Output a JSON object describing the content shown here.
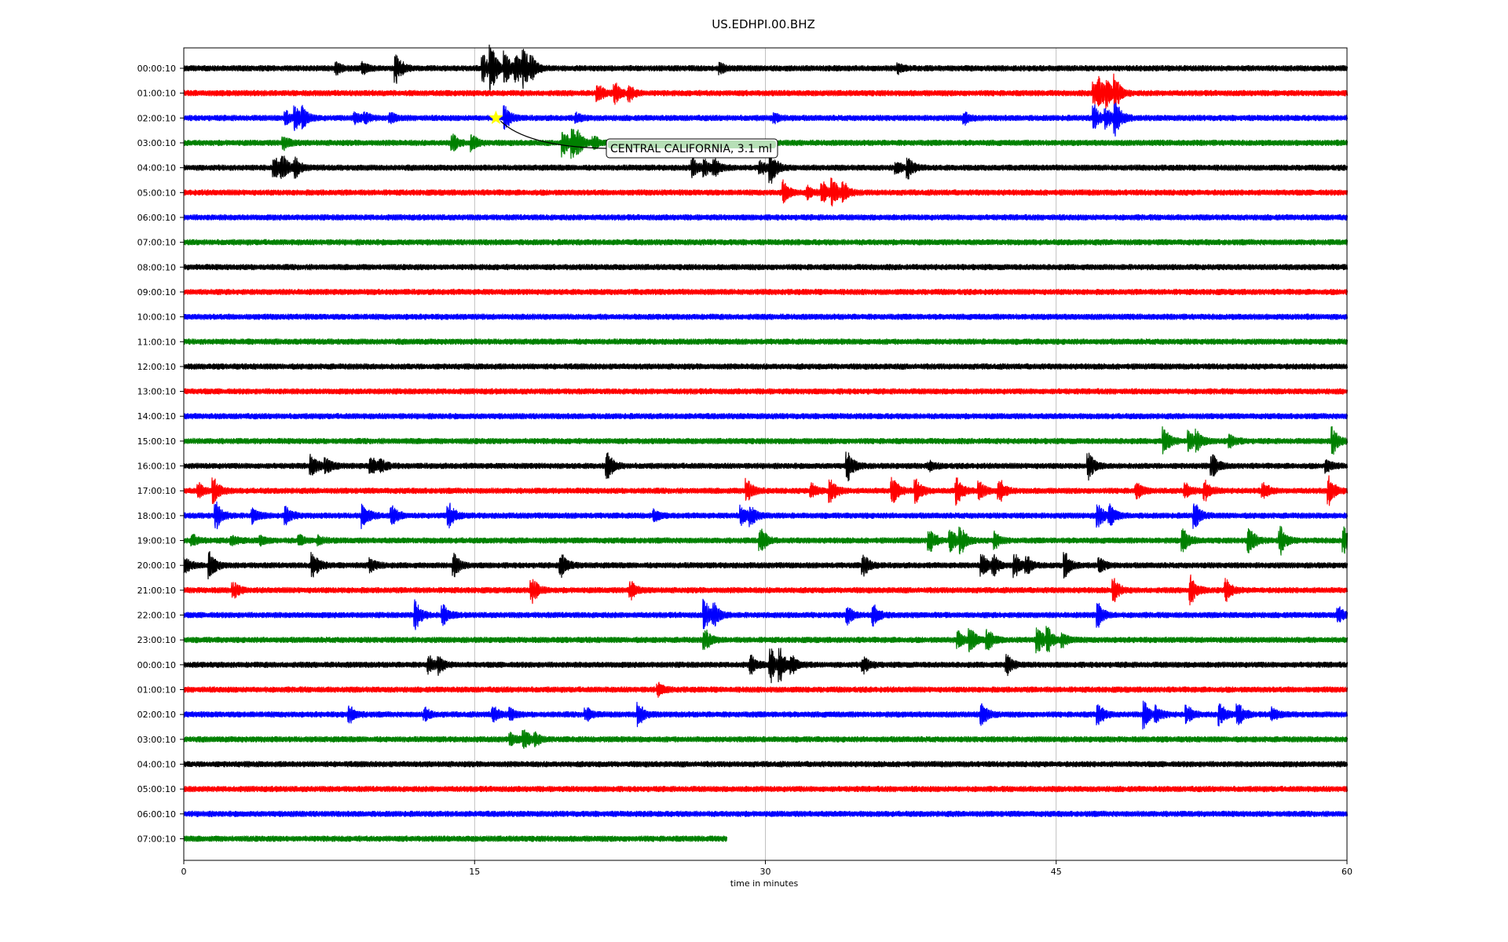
{
  "chart_data": {
    "type": "line",
    "title": "US.EDHPI.00.BHZ",
    "xlabel": "time in minutes",
    "ylabel": "",
    "xlim": [
      0,
      60
    ],
    "x_ticks": [
      "0",
      "15",
      "30",
      "45",
      "60"
    ],
    "grid": "vertical",
    "series_colors": [
      "#000000",
      "#ff0000",
      "#0000ff",
      "#008000"
    ],
    "rows": [
      {
        "label": "00:00:10",
        "end": 60,
        "events": [
          [
            7.9,
            0.35
          ],
          [
            9.3,
            0.4
          ],
          [
            11.0,
            1.0
          ],
          [
            15.5,
            0.9
          ],
          [
            15.9,
            1.5
          ],
          [
            16.6,
            1.2
          ],
          [
            17.2,
            1.0
          ],
          [
            17.6,
            1.2
          ],
          [
            18.0,
            0.6
          ],
          [
            27.7,
            0.3
          ],
          [
            36.9,
            0.3
          ]
        ]
      },
      {
        "label": "01:00:10",
        "end": 60,
        "events": [
          [
            21.4,
            0.6
          ],
          [
            22.3,
            0.7
          ],
          [
            23.0,
            0.5
          ],
          [
            47.0,
            1.2
          ],
          [
            47.3,
            0.9
          ],
          [
            47.7,
            0.8
          ],
          [
            48.1,
            1.0
          ]
        ]
      },
      {
        "label": "02:00:10",
        "end": 60,
        "events": [
          [
            5.3,
            0.4
          ],
          [
            5.8,
            0.8
          ],
          [
            6.2,
            0.6
          ],
          [
            8.9,
            0.4
          ],
          [
            9.4,
            0.3
          ],
          [
            10.7,
            0.3
          ],
          [
            16.6,
            0.8
          ],
          [
            20.3,
            0.3
          ],
          [
            30.5,
            0.3
          ],
          [
            40.3,
            0.4
          ],
          [
            47.0,
            0.8
          ],
          [
            47.6,
            0.7
          ],
          [
            48.1,
            1.2
          ]
        ]
      },
      {
        "label": "03:00:10",
        "end": 60,
        "events": [
          [
            5.2,
            0.5
          ],
          [
            13.9,
            0.6
          ],
          [
            14.9,
            0.5
          ],
          [
            19.6,
            1.0
          ],
          [
            20.1,
            0.9
          ],
          [
            20.4,
            0.6
          ],
          [
            21.2,
            0.4
          ]
        ]
      },
      {
        "label": "04:00:10",
        "end": 60,
        "events": [
          [
            4.7,
            0.8
          ],
          [
            5.1,
            0.9
          ],
          [
            5.8,
            0.6
          ],
          [
            26.3,
            0.6
          ],
          [
            26.9,
            0.5
          ],
          [
            27.4,
            0.6
          ],
          [
            29.8,
            0.5
          ],
          [
            30.3,
            1.2
          ],
          [
            36.8,
            0.4
          ],
          [
            37.4,
            0.7
          ]
        ]
      },
      {
        "label": "05:00:10",
        "end": 60,
        "events": [
          [
            31.0,
            0.8
          ],
          [
            32.2,
            0.4
          ],
          [
            33.0,
            0.7
          ],
          [
            33.5,
            0.9
          ],
          [
            34.1,
            0.6
          ]
        ]
      },
      {
        "label": "06:00:10",
        "end": 60,
        "events": []
      },
      {
        "label": "07:00:10",
        "end": 60,
        "events": []
      },
      {
        "label": "08:00:10",
        "end": 60,
        "events": []
      },
      {
        "label": "09:00:10",
        "end": 60,
        "events": []
      },
      {
        "label": "10:00:10",
        "end": 60,
        "events": []
      },
      {
        "label": "11:00:10",
        "end": 60,
        "events": []
      },
      {
        "label": "12:00:10",
        "end": 60,
        "events": []
      },
      {
        "label": "13:00:10",
        "end": 60,
        "events": []
      },
      {
        "label": "14:00:10",
        "end": 60,
        "events": []
      },
      {
        "label": "15:00:10",
        "end": 60,
        "events": [
          [
            50.6,
            1.0
          ],
          [
            51.9,
            0.7
          ],
          [
            52.3,
            0.6
          ],
          [
            54.0,
            0.4
          ],
          [
            59.3,
            0.9
          ]
        ]
      },
      {
        "label": "16:00:10",
        "end": 60,
        "events": [
          [
            6.6,
            0.9
          ],
          [
            7.4,
            0.6
          ],
          [
            9.7,
            0.7
          ],
          [
            10.2,
            0.4
          ],
          [
            21.9,
            0.9
          ],
          [
            34.3,
            1.0
          ],
          [
            38.5,
            0.3
          ],
          [
            46.7,
            0.9
          ],
          [
            53.1,
            0.7
          ],
          [
            59.0,
            0.4
          ]
        ]
      },
      {
        "label": "17:00:10",
        "end": 60,
        "events": [
          [
            0.8,
            0.5
          ],
          [
            1.6,
            0.9
          ],
          [
            29.1,
            0.8
          ],
          [
            32.4,
            0.6
          ],
          [
            33.4,
            0.9
          ],
          [
            36.6,
            0.9
          ],
          [
            37.8,
            0.9
          ],
          [
            39.9,
            1.0
          ],
          [
            41.1,
            0.6
          ],
          [
            42.1,
            0.8
          ],
          [
            49.2,
            0.5
          ],
          [
            51.7,
            0.5
          ],
          [
            52.7,
            0.8
          ],
          [
            55.7,
            0.6
          ],
          [
            59.1,
            1.0
          ]
        ]
      },
      {
        "label": "18:00:10",
        "end": 60,
        "events": [
          [
            1.7,
            0.9
          ],
          [
            3.6,
            0.6
          ],
          [
            5.3,
            0.6
          ],
          [
            9.3,
            0.9
          ],
          [
            10.8,
            0.6
          ],
          [
            13.7,
            1.0
          ],
          [
            24.3,
            0.4
          ],
          [
            28.8,
            0.7
          ],
          [
            29.3,
            0.6
          ],
          [
            47.2,
            0.8
          ],
          [
            47.8,
            0.7
          ],
          [
            52.2,
            0.8
          ]
        ]
      },
      {
        "label": "19:00:10",
        "end": 60,
        "events": [
          [
            0.5,
            0.3
          ],
          [
            2.5,
            0.3
          ],
          [
            4.0,
            0.3
          ],
          [
            6.0,
            0.3
          ],
          [
            7.0,
            0.3
          ],
          [
            29.8,
            0.9
          ],
          [
            38.5,
            0.9
          ],
          [
            39.6,
            0.8
          ],
          [
            40.1,
            0.9
          ],
          [
            41.9,
            0.6
          ],
          [
            51.6,
            0.8
          ],
          [
            55.0,
            0.9
          ],
          [
            56.6,
            0.9
          ],
          [
            59.9,
            1.0
          ]
        ]
      },
      {
        "label": "20:00:10",
        "end": 60,
        "events": [
          [
            0.1,
            0.5
          ],
          [
            1.4,
            0.9
          ],
          [
            6.7,
            0.9
          ],
          [
            9.7,
            0.4
          ],
          [
            14.0,
            0.8
          ],
          [
            19.5,
            0.9
          ],
          [
            35.1,
            0.7
          ],
          [
            41.2,
            0.8
          ],
          [
            41.8,
            0.7
          ],
          [
            42.9,
            0.8
          ],
          [
            43.5,
            0.6
          ],
          [
            45.5,
            0.9
          ],
          [
            47.3,
            0.5
          ]
        ]
      },
      {
        "label": "21:00:10",
        "end": 60,
        "events": [
          [
            2.6,
            0.5
          ],
          [
            18.0,
            0.9
          ],
          [
            23.1,
            0.6
          ],
          [
            48.0,
            0.8
          ],
          [
            52.0,
            1.0
          ],
          [
            53.8,
            0.8
          ]
        ]
      },
      {
        "label": "22:00:10",
        "end": 60,
        "events": [
          [
            12.0,
            1.0
          ],
          [
            13.4,
            0.7
          ],
          [
            26.9,
            1.0
          ],
          [
            27.4,
            0.7
          ],
          [
            34.3,
            0.6
          ],
          [
            35.6,
            0.8
          ],
          [
            47.2,
            0.8
          ],
          [
            59.6,
            0.6
          ]
        ]
      },
      {
        "label": "23:00:10",
        "end": 60,
        "events": [
          [
            26.9,
            0.8
          ],
          [
            40.0,
            0.6
          ],
          [
            40.6,
            0.9
          ],
          [
            41.5,
            0.7
          ],
          [
            44.1,
            0.9
          ],
          [
            44.6,
            0.8
          ],
          [
            45.4,
            0.4
          ]
        ]
      },
      {
        "label": "00:00:10",
        "end": 60,
        "events": [
          [
            12.7,
            0.6
          ],
          [
            13.2,
            0.5
          ],
          [
            29.3,
            0.6
          ],
          [
            30.3,
            1.2
          ],
          [
            30.8,
            1.0
          ],
          [
            31.4,
            0.6
          ],
          [
            35.1,
            0.6
          ],
          [
            42.5,
            0.7
          ]
        ]
      },
      {
        "label": "01:00:10",
        "end": 60,
        "events": [
          [
            24.5,
            0.4
          ]
        ]
      },
      {
        "label": "02:00:10",
        "end": 60,
        "events": [
          [
            8.6,
            0.5
          ],
          [
            12.5,
            0.4
          ],
          [
            16.0,
            0.6
          ],
          [
            16.9,
            0.4
          ],
          [
            20.8,
            0.4
          ],
          [
            23.5,
            0.8
          ],
          [
            41.2,
            0.8
          ],
          [
            47.2,
            0.8
          ],
          [
            49.6,
            0.9
          ],
          [
            50.2,
            0.5
          ],
          [
            51.8,
            0.6
          ],
          [
            53.5,
            0.7
          ],
          [
            54.4,
            0.9
          ],
          [
            56.2,
            0.4
          ]
        ]
      },
      {
        "label": "03:00:10",
        "end": 60,
        "events": [
          [
            16.9,
            0.5
          ],
          [
            17.6,
            0.6
          ],
          [
            18.2,
            0.4
          ]
        ]
      },
      {
        "label": "04:00:10",
        "end": 60,
        "events": []
      },
      {
        "label": "05:00:10",
        "end": 60,
        "events": []
      },
      {
        "label": "06:00:10",
        "end": 60,
        "events": []
      },
      {
        "label": "07:00:10",
        "end": 28.0,
        "events": []
      }
    ],
    "annotation": {
      "text": "CENTRAL CALIFORNIA, 3.1 ml",
      "row": 2,
      "x": 16.1,
      "marker": "star",
      "marker_color": "#ffff00"
    }
  }
}
